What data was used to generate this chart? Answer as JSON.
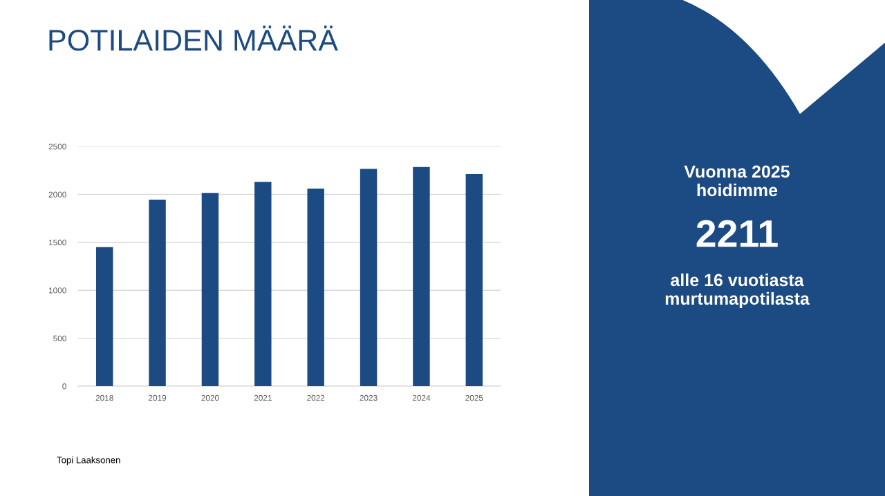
{
  "chart_data": [
    {
      "type": "bar",
      "title": "POTILAIDEN MÄÄRÄ",
      "categories": [
        "2018",
        "2019",
        "2020",
        "2021",
        "2022",
        "2023",
        "2024",
        "2025"
      ],
      "values": [
        1450,
        1945,
        2015,
        2130,
        2060,
        2265,
        2285,
        2211
      ],
      "color": "#1c4a82",
      "ylim": [
        0,
        2500
      ],
      "yticks": [
        0,
        500,
        1000,
        1500,
        2000,
        2500
      ],
      "grid": "y",
      "annotations": [
        "Topi Laaksonen"
      ]
    },
    {
      "type": "other",
      "annotations": [
        "Vuonna 2025\nhoidimme",
        "2211",
        "alle 16 vuotiasta\nmurtumapotilasta"
      ]
    }
  ]
}
